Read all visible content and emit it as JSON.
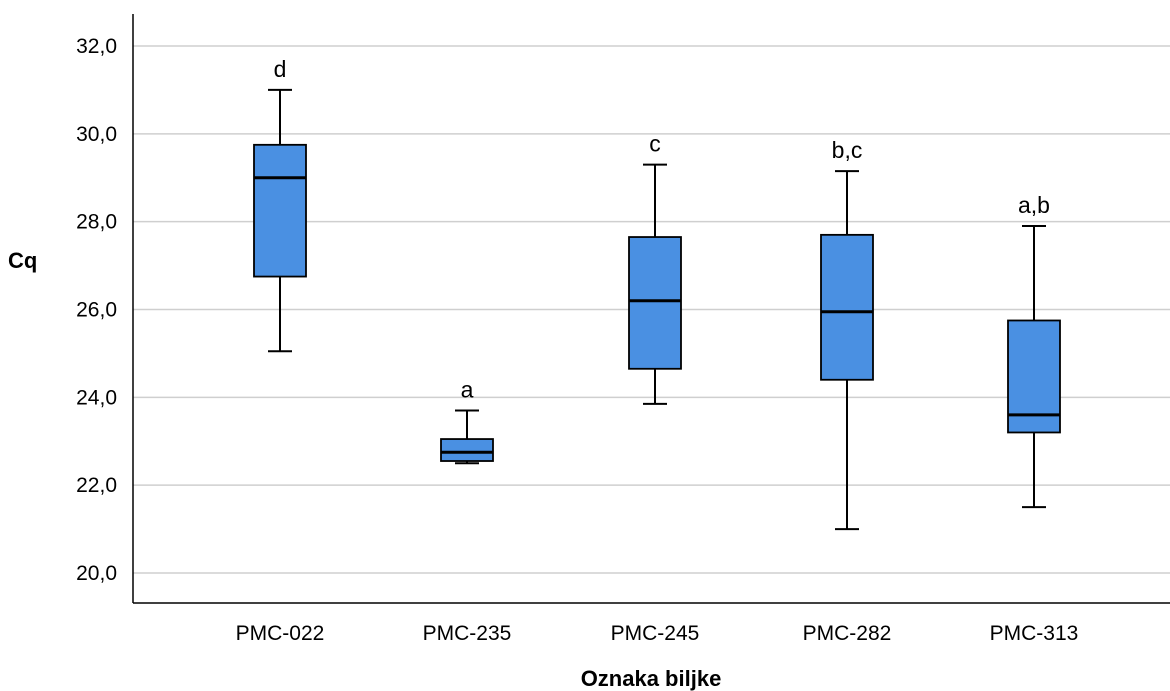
{
  "chart_data": {
    "type": "boxplot",
    "xlabel": "Oznaka biljke",
    "ylabel": "Cq",
    "ylim": [
      19.3,
      32.8
    ],
    "yticks": [
      "20,0",
      "22,0",
      "24,0",
      "26,0",
      "28,0",
      "30,0",
      "32,0"
    ],
    "ytick_values": [
      20,
      22,
      24,
      26,
      28,
      30,
      32
    ],
    "grid": true,
    "box_color": "#4a90e2",
    "categories": [
      "PMC-022",
      "PMC-235",
      "PMC-245",
      "PMC-282",
      "PMC-313"
    ],
    "boxes": [
      {
        "category": "PMC-022",
        "min": 25.05,
        "q1": 26.75,
        "median": 29.0,
        "q3": 29.75,
        "max": 31.0,
        "letter": "d"
      },
      {
        "category": "PMC-235",
        "min": 22.5,
        "q1": 22.55,
        "median": 22.75,
        "q3": 23.05,
        "max": 23.7,
        "letter": "a"
      },
      {
        "category": "PMC-245",
        "min": 23.85,
        "q1": 24.65,
        "median": 26.2,
        "q3": 27.65,
        "max": 29.3,
        "letter": "c"
      },
      {
        "category": "PMC-282",
        "min": 21.0,
        "q1": 24.4,
        "median": 25.95,
        "q3": 27.7,
        "max": 29.15,
        "letter": "b,c"
      },
      {
        "category": "PMC-313",
        "min": 21.5,
        "q1": 23.2,
        "median": 23.6,
        "q3": 25.75,
        "max": 27.9,
        "letter": "a,b"
      }
    ]
  }
}
